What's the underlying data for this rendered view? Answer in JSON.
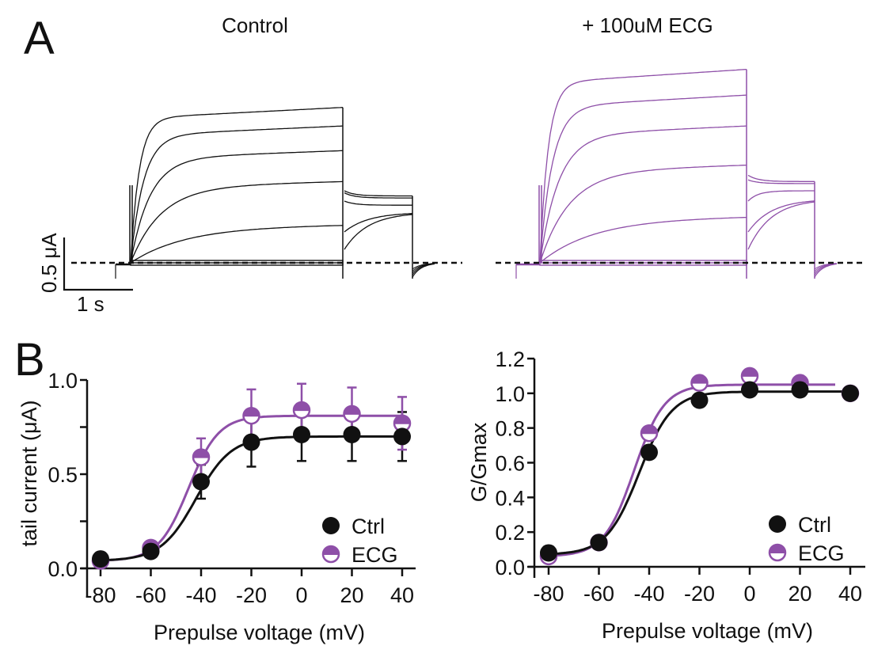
{
  "figure": {
    "panel_labels": [
      "A",
      "B"
    ],
    "colors": {
      "control": "#111111",
      "ecg": "#8e4fa8",
      "baseline": "#111111"
    }
  },
  "panel_a": {
    "titles": {
      "control": "Control",
      "ecg": "+ 100uM ECG"
    },
    "scale_bar": {
      "current_label": "0.5 μA",
      "time_label": "1 s",
      "current_uA": 0.5,
      "time_s": 1
    },
    "traces": {
      "control": {
        "step_plateaus_uA": [
          1.51,
          1.33,
          1.09,
          0.79,
          0.37,
          0.0,
          0.0
        ],
        "tail_levels_uA": [
          0.65,
          0.63,
          0.56,
          0.49,
          0.49
        ]
      },
      "ecg": {
        "step_plateaus_uA": [
          1.88,
          1.63,
          1.33,
          0.95,
          0.45,
          0.0,
          0.0
        ],
        "tail_levels_uA": [
          0.79,
          0.77,
          0.7,
          0.62,
          0.62
        ]
      }
    }
  },
  "chart_data": [
    {
      "type": "scatter",
      "title": "",
      "xlabel": "Prepulse voltage (mV)",
      "ylabel": "tail current (μA)",
      "x": [
        -80,
        -60,
        -40,
        -20,
        0,
        20,
        40
      ],
      "xlim": [
        -80,
        40
      ],
      "ylim": [
        0,
        1.0
      ],
      "xticks": [
        "-80",
        "-60",
        "-40",
        "-20",
        "0",
        "20",
        "40"
      ],
      "yticks": [
        "0.0",
        "0.5",
        "1.0"
      ],
      "ytick_values": [
        0,
        0.25,
        0.5,
        0.75,
        1.0
      ],
      "grid": false,
      "legend": "bottom-right",
      "fit": "boltzmann",
      "series": [
        {
          "name": "Ctrl",
          "marker": "filled-circle",
          "values": [
            0.05,
            0.09,
            0.46,
            0.67,
            0.71,
            0.71,
            0.7
          ],
          "errors": [
            0.01,
            0.02,
            0.09,
            0.13,
            0.14,
            0.14,
            0.13
          ],
          "fit_params": {
            "bottom": 0.04,
            "top": 0.7,
            "v_half": -42,
            "slope": 7
          }
        },
        {
          "name": "ECG",
          "marker": "half-filled-circle",
          "values": [
            0.04,
            0.11,
            0.59,
            0.81,
            0.84,
            0.82,
            0.77
          ],
          "errors": [
            0.01,
            0.02,
            0.1,
            0.14,
            0.14,
            0.14,
            0.14
          ],
          "fit_params": {
            "bottom": 0.04,
            "top": 0.81,
            "v_half": -45,
            "slope": 6
          }
        }
      ]
    },
    {
      "type": "scatter",
      "title": "",
      "xlabel": "Prepulse voltage (mV)",
      "ylabel": "G/Gmax",
      "x": [
        -80,
        -60,
        -40,
        -20,
        0,
        20,
        40
      ],
      "xlim": [
        -80,
        40
      ],
      "ylim": [
        0,
        1.2
      ],
      "xticks": [
        "-80",
        "-60",
        "-40",
        "-20",
        "0",
        "20",
        "40"
      ],
      "yticks": [
        "0.0",
        "0.2",
        "0.4",
        "0.6",
        "0.8",
        "1.0",
        "1.2"
      ],
      "ytick_values": [
        0,
        0.2,
        0.4,
        0.6,
        0.8,
        1.0,
        1.2
      ],
      "grid": false,
      "legend": "bottom-right",
      "fit": "boltzmann",
      "series": [
        {
          "name": "Ctrl",
          "marker": "filled-circle",
          "values": [
            0.08,
            0.14,
            0.66,
            0.96,
            1.02,
            1.02,
            1.0
          ],
          "fit_params": {
            "bottom": 0.07,
            "top": 1.01,
            "v_half": -44,
            "slope": 6.5
          }
        },
        {
          "name": "ECG",
          "marker": "half-filled-circle",
          "values": [
            0.06,
            0.14,
            0.77,
            1.06,
            1.1,
            1.06,
            1.0
          ],
          "fit_params": {
            "bottom": 0.06,
            "top": 1.05,
            "v_half": -46,
            "slope": 6
          }
        }
      ]
    }
  ]
}
